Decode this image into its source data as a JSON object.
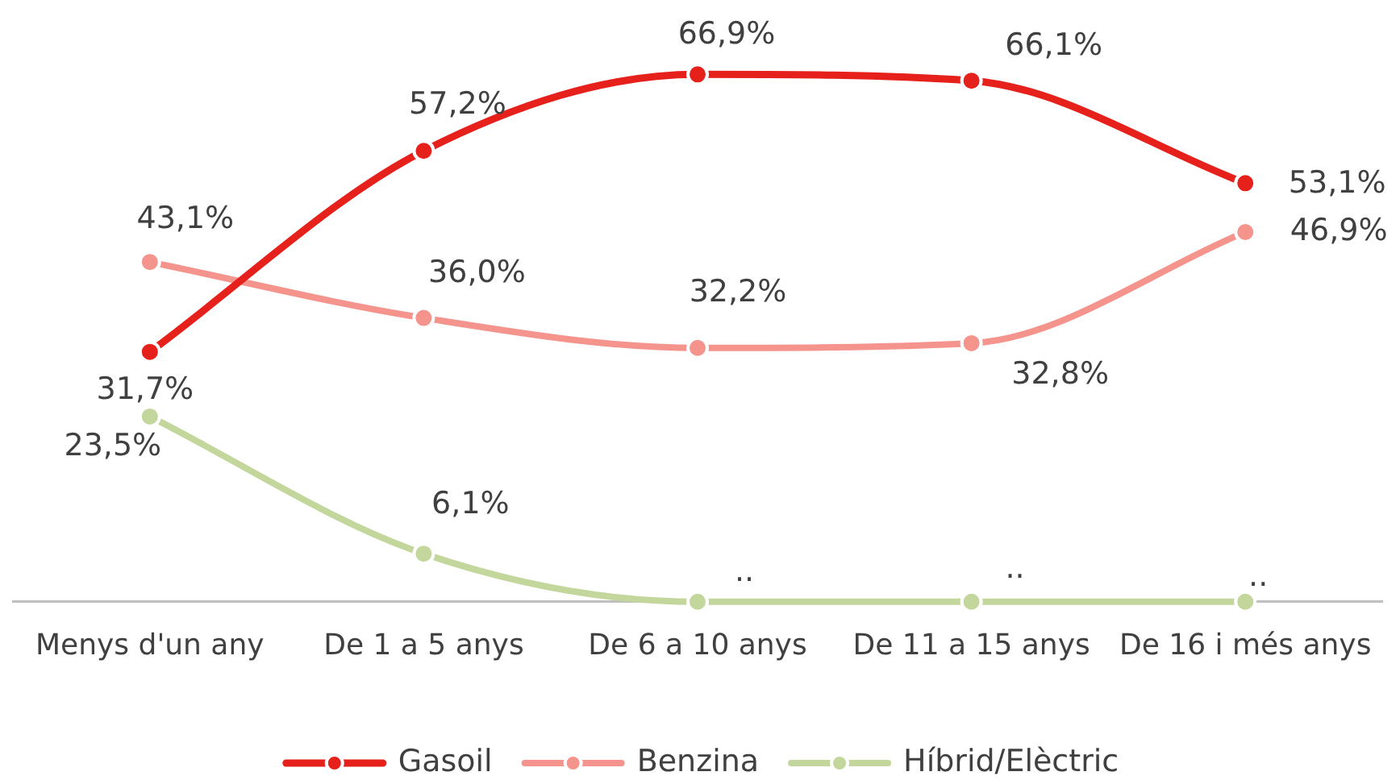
{
  "chart_data": {
    "type": "line",
    "categories": [
      "Menys d'un any",
      "De 1 a 5 anys",
      "De 6 a 10 anys",
      "De 11 a 15 anys",
      "De 16 i més anys"
    ],
    "series": [
      {
        "name": "Gasoil",
        "color": "#e6211b",
        "values": [
          31.7,
          57.2,
          66.9,
          66.1,
          53.1
        ],
        "value_labels": [
          "31,7%",
          "57,2%",
          "66,9%",
          "66,1%",
          "53,1%"
        ]
      },
      {
        "name": "Benzina",
        "color": "#f4948d",
        "values": [
          43.1,
          36.0,
          32.2,
          32.8,
          46.9
        ],
        "value_labels": [
          "43,1%",
          "36,0%",
          "32,2%",
          "32,8%",
          "46,9%"
        ]
      },
      {
        "name": "Híbrid/Elèctric",
        "color": "#c3d69b",
        "values": [
          23.5,
          6.1,
          0,
          0,
          0
        ],
        "value_labels": [
          "23,5%",
          "6,1%",
          "..",
          "..",
          ".."
        ]
      }
    ],
    "marker": "circle",
    "legend": "bottom",
    "tick_labels": "x"
  }
}
